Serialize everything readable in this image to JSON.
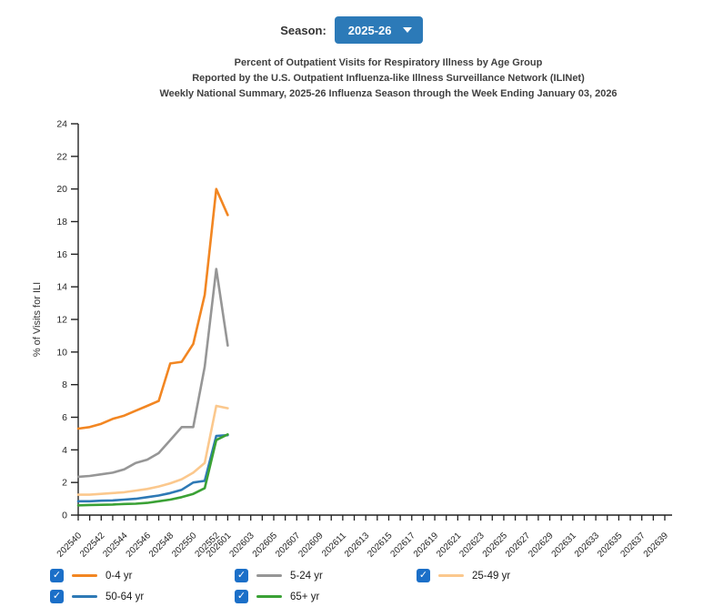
{
  "season_control": {
    "label": "Season:",
    "value": "2025-26",
    "button_color": "#2C7AB8"
  },
  "title": {
    "line1": "Percent of Outpatient Visits for Respiratory Illness by Age Group",
    "line2": "Reported by the U.S. Outpatient Influenza-like Illness Surveillance Network (ILINet)",
    "line3": "Weekly National Summary, 2025-26 Influenza Season through the Week Ending January 03, 2026"
  },
  "chart_data": {
    "type": "line",
    "ylabel": "% of Visits for ILI",
    "ylim": [
      0,
      24
    ],
    "ytick_step": 2,
    "grid": "off",
    "x_ticks": [
      "202540",
      "202541",
      "202542",
      "202543",
      "202544",
      "202545",
      "202546",
      "202547",
      "202548",
      "202549",
      "202550",
      "202551",
      "202552",
      "202601",
      "202602",
      "202603",
      "202604",
      "202605",
      "202606",
      "202607",
      "202608",
      "202609",
      "202610",
      "202611",
      "202612",
      "202613",
      "202614",
      "202615",
      "202616",
      "202617",
      "202618",
      "202619",
      "202620",
      "202621",
      "202622",
      "202623",
      "202624",
      "202625",
      "202626",
      "202627",
      "202628",
      "202629",
      "202630",
      "202631",
      "202632",
      "202633",
      "202634",
      "202635",
      "202636",
      "202637",
      "202638",
      "202639"
    ],
    "x_axis_labels": [
      "202540",
      "202542",
      "202544",
      "202546",
      "202548",
      "202550",
      "202552",
      "202601",
      "202603",
      "202605",
      "202607",
      "202609",
      "202611",
      "202613",
      "202615",
      "202617",
      "202619",
      "202621",
      "202623",
      "202625",
      "202627",
      "202629",
      "202631",
      "202633",
      "202635",
      "202637",
      "202639"
    ],
    "data_weeks": [
      "202540",
      "202541",
      "202542",
      "202543",
      "202544",
      "202545",
      "202546",
      "202547",
      "202548",
      "202549",
      "202550",
      "202551",
      "202552",
      "202601"
    ],
    "series": [
      {
        "name": "0-4 yr",
        "color": "#F28622",
        "values": [
          5.3,
          5.4,
          5.6,
          5.9,
          6.1,
          6.4,
          6.7,
          7.0,
          9.3,
          9.4,
          10.5,
          13.5,
          20.0,
          18.4
        ]
      },
      {
        "name": "5-24 yr",
        "color": "#969696",
        "values": [
          2.35,
          2.4,
          2.5,
          2.6,
          2.8,
          3.2,
          3.4,
          3.8,
          4.6,
          5.4,
          5.4,
          9.1,
          15.1,
          10.4
        ]
      },
      {
        "name": "25-49 yr",
        "color": "#FBC88D",
        "values": [
          1.25,
          1.25,
          1.3,
          1.35,
          1.4,
          1.5,
          1.6,
          1.75,
          1.95,
          2.2,
          2.6,
          3.2,
          6.7,
          6.55
        ]
      },
      {
        "name": "50-64 yr",
        "color": "#2E79B5",
        "values": [
          0.85,
          0.85,
          0.88,
          0.9,
          0.95,
          1.0,
          1.1,
          1.2,
          1.35,
          1.55,
          2.0,
          2.1,
          4.85,
          4.9
        ]
      },
      {
        "name": "65+ yr",
        "color": "#3AA135",
        "values": [
          0.6,
          0.62,
          0.63,
          0.65,
          0.68,
          0.7,
          0.75,
          0.85,
          0.95,
          1.1,
          1.3,
          1.65,
          4.6,
          4.95
        ]
      }
    ]
  },
  "legend": {
    "checkbox_color": "#1B6FC8",
    "check_glyph": "✓",
    "items_checked": [
      true,
      true,
      true,
      true,
      true
    ]
  }
}
